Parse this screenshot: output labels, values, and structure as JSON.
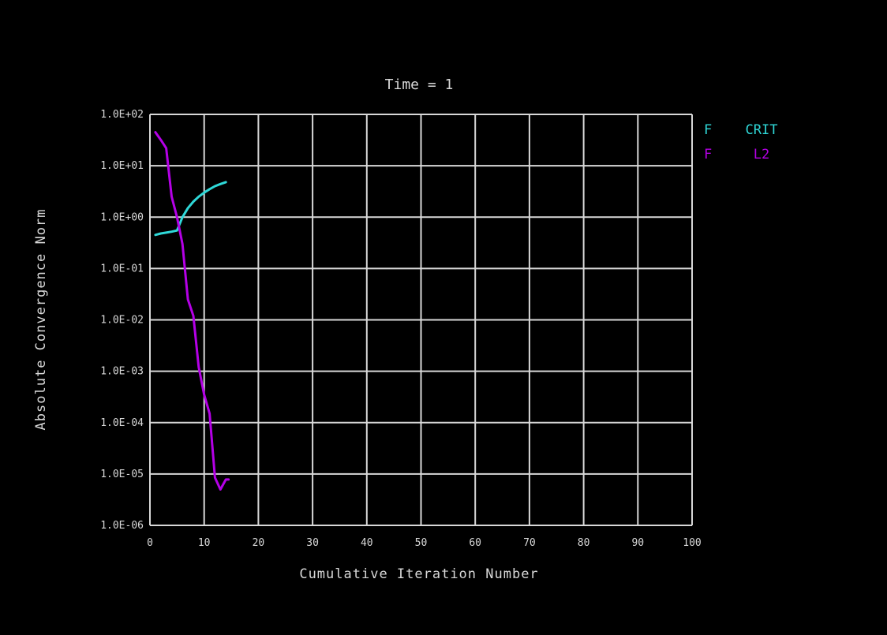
{
  "chart_data": {
    "type": "line",
    "title": "Time = 1",
    "xlabel": "Cumulative Iteration Number",
    "ylabel": "Absolute Convergence Norm",
    "xlim": [
      0,
      100
    ],
    "ylim": [
      1e-06,
      100
    ],
    "yscale": "log",
    "grid": true,
    "legend_position": "right",
    "x_ticks": [
      "0",
      "10",
      "20",
      "30",
      "40",
      "50",
      "60",
      "70",
      "80",
      "90",
      "100"
    ],
    "y_ticks": [
      "1.0E+02",
      "1.0E+01",
      "1.0E+00",
      "1.0E-01",
      "1.0E-02",
      "1.0E-03",
      "1.0E-04",
      "1.0E-05",
      "1.0E-06"
    ],
    "series": [
      {
        "legend_key": "F",
        "legend_label": "CRIT",
        "color": "#2fd8d8",
        "points": [
          [
            1,
            0.45
          ],
          [
            2,
            0.48
          ],
          [
            3,
            0.5
          ],
          [
            4,
            0.52
          ],
          [
            5,
            0.55
          ],
          [
            6,
            1.0
          ],
          [
            7,
            1.5
          ],
          [
            8,
            2.0
          ],
          [
            9,
            2.5
          ],
          [
            10,
            3.0
          ],
          [
            11,
            3.5
          ],
          [
            12,
            4.0
          ],
          [
            13,
            4.4
          ],
          [
            14,
            4.8
          ]
        ]
      },
      {
        "legend_key": "F",
        "legend_label": "L2",
        "color": "#b400e6",
        "points": [
          [
            1,
            45
          ],
          [
            2,
            32
          ],
          [
            3,
            22
          ],
          [
            4,
            2.5
          ],
          [
            5,
            1.0
          ],
          [
            6,
            0.3
          ],
          [
            7,
            0.025
          ],
          [
            8,
            0.012
          ],
          [
            9,
            0.0012
          ],
          [
            10,
            0.00035
          ],
          [
            11,
            0.00015
          ],
          [
            12,
            8.5e-06
          ],
          [
            13,
            5e-06
          ],
          [
            14,
            7.8e-06
          ],
          [
            14.5,
            7.8e-06
          ]
        ]
      }
    ]
  }
}
